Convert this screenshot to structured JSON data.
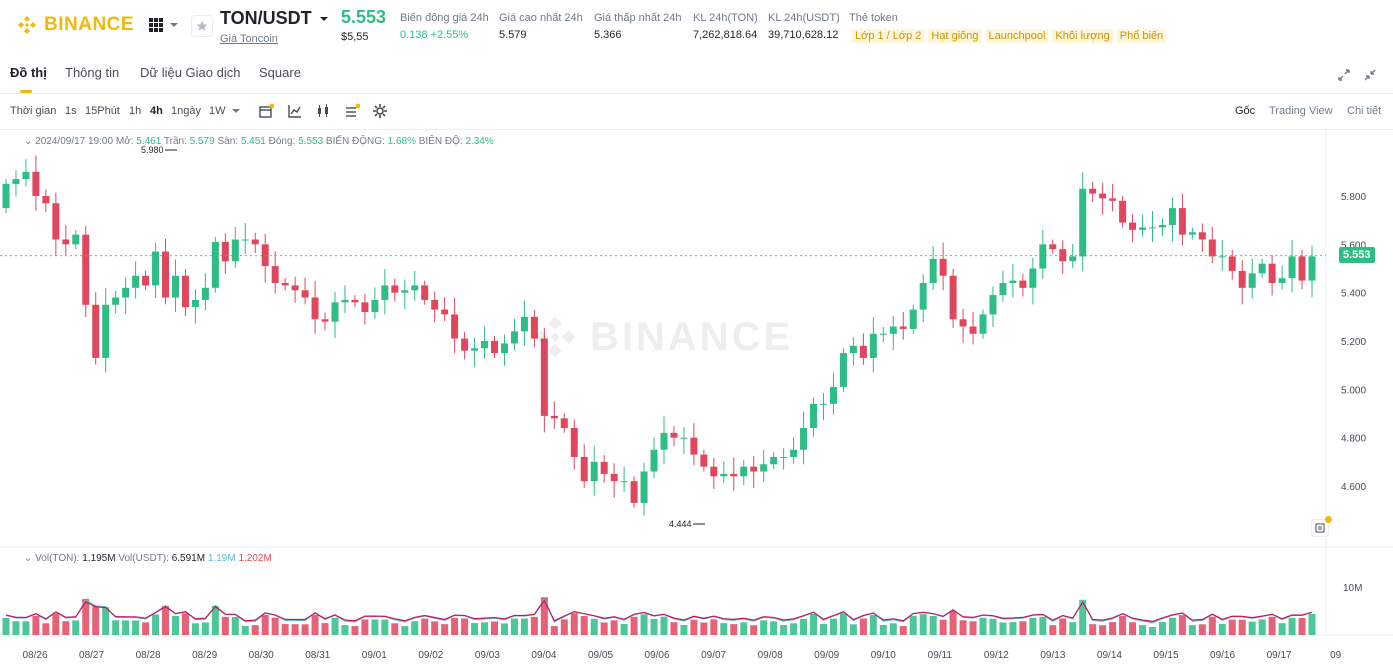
{
  "header": {
    "logo_text": "BINANCE",
    "symbol": "TON/USDT",
    "symbol_sub": "Giá Toncoin",
    "last_price": "5.553",
    "last_price_usd": "$5,55",
    "stats": [
      {
        "label": "Biến động giá 24h",
        "value": "0.138 +2.55%"
      },
      {
        "label": "Giá cao nhất 24h",
        "value": "5.579"
      },
      {
        "label": "Giá thấp nhất 24h",
        "value": "5.366"
      },
      {
        "label": "KL 24h(TON)",
        "value": "7,262,818.64"
      },
      {
        "label": "KL 24h(USDT)",
        "value": "39,710,628.12"
      }
    ],
    "token_tags_label": "Thẻ token",
    "token_tags": [
      "Lớp 1 / Lớp 2",
      "Hạt giống",
      "Launchpool",
      "Khối lượng",
      "Phổ biến"
    ]
  },
  "tabs": [
    "Đồ thị",
    "Thông tin",
    "Dữ liệu Giao dịch",
    "Square"
  ],
  "toolbar": {
    "time_label": "Thời gian",
    "intervals": [
      "1s",
      "15Phút",
      "1h",
      "4h",
      "1ngày",
      "1W"
    ],
    "active_interval": "4h",
    "views": [
      "Gốc",
      "Trading View",
      "Chi tiết"
    ],
    "active_view": "Gốc"
  },
  "ohlc": {
    "datetime": "2024/09/17 19:00",
    "open_label": "Mở:",
    "open": "5.461",
    "high_label": "Trần:",
    "high": "5.579",
    "low_label": "Sàn:",
    "low": "5.451",
    "close_label": "Đóng:",
    "close": "5.553",
    "change_label": "BIẾN ĐỘNG:",
    "change": "1.68%",
    "amplitude_label": "BIÊN ĐỘ:",
    "amplitude": "2.34%"
  },
  "volume_legend": {
    "ton_label": "Vol(TON):",
    "ton": "1.195M",
    "usdt_label": "Vol(USDT):",
    "usdt": "6.591M",
    "ma1": "1.19M",
    "ma2": "1.202M"
  },
  "chart_data": {
    "type": "candlestick",
    "price_axis_ticks": [
      "5.800",
      "5.600",
      "5.400",
      "5.200",
      "5.000",
      "4.800",
      "4.600"
    ],
    "volume_axis_ticks": [
      "10M"
    ],
    "x_tick_labels": [
      "08/26",
      "08/27",
      "08/28",
      "08/29",
      "08/30",
      "08/31",
      "09/01",
      "09/02",
      "09/03",
      "09/04",
      "09/05",
      "09/06",
      "09/07",
      "09/08",
      "09/09",
      "09/10",
      "09/11",
      "09/12",
      "09/13",
      "09/14",
      "09/15",
      "09/16",
      "09/17",
      "09"
    ],
    "max_marker": "5.980",
    "min_marker": "4.444",
    "current_price": "5.553",
    "closes": [
      5.85,
      5.87,
      5.9,
      5.8,
      5.77,
      5.62,
      5.6,
      5.64,
      5.35,
      5.13,
      5.35,
      5.38,
      5.42,
      5.47,
      5.43,
      5.57,
      5.38,
      5.47,
      5.34,
      5.37,
      5.42,
      5.61,
      5.53,
      5.62,
      5.62,
      5.6,
      5.51,
      5.44,
      5.43,
      5.41,
      5.38,
      5.29,
      5.28,
      5.36,
      5.37,
      5.36,
      5.32,
      5.37,
      5.43,
      5.4,
      5.41,
      5.43,
      5.37,
      5.33,
      5.31,
      5.21,
      5.16,
      5.17,
      5.2,
      5.15,
      5.19,
      5.24,
      5.3,
      5.21,
      4.89,
      4.88,
      4.84,
      4.72,
      4.62,
      4.7,
      4.65,
      4.62,
      4.62,
      4.53,
      4.66,
      4.75,
      4.82,
      4.8,
      4.8,
      4.73,
      4.68,
      4.64,
      4.65,
      4.64,
      4.68,
      4.66,
      4.69,
      4.72,
      4.72,
      4.75,
      4.84,
      4.94,
      4.94,
      5.01,
      5.15,
      5.18,
      5.13,
      5.23,
      5.23,
      5.26,
      5.25,
      5.33,
      5.44,
      5.54,
      5.47,
      5.29,
      5.26,
      5.23,
      5.31,
      5.39,
      5.44,
      5.45,
      5.42,
      5.5,
      5.6,
      5.58,
      5.53,
      5.55,
      5.83,
      5.81,
      5.79,
      5.78,
      5.69,
      5.66,
      5.67,
      5.67,
      5.68,
      5.75,
      5.64,
      5.65,
      5.62,
      5.55,
      5.55,
      5.49,
      5.42,
      5.48,
      5.52,
      5.44,
      5.46,
      5.55,
      5.45,
      5.55
    ]
  }
}
